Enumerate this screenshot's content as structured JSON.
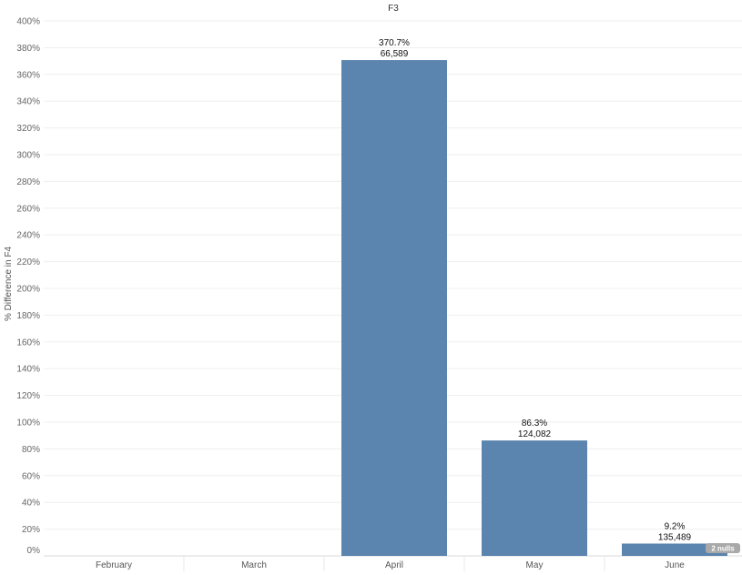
{
  "chart_data": {
    "type": "bar",
    "title": "F3",
    "xlabel": "",
    "ylabel": "% Difference in F4",
    "categories": [
      "February",
      "March",
      "April",
      "May",
      "June"
    ],
    "values": [
      null,
      null,
      370.7,
      86.3,
      9.2
    ],
    "labels_pct": [
      "",
      "",
      "370.7%",
      "86.3%",
      "9.2%"
    ],
    "labels_value": [
      "",
      "",
      "66,589",
      "124,082",
      "135,489"
    ],
    "ylim": [
      0,
      400
    ],
    "y_ticks": [
      "0%",
      "20%",
      "40%",
      "60%",
      "80%",
      "100%",
      "120%",
      "140%",
      "160%",
      "180%",
      "200%",
      "220%",
      "240%",
      "260%",
      "280%",
      "300%",
      "320%",
      "340%",
      "360%",
      "380%",
      "400%"
    ],
    "bar_color": "#5b84ae",
    "grid": true,
    "nulls_indicator": "2 nulls"
  }
}
